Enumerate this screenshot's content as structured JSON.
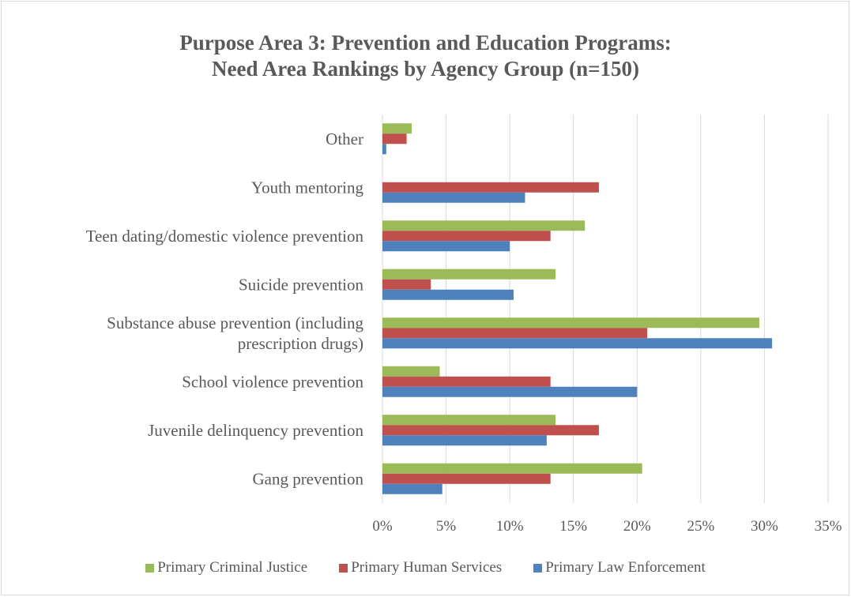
{
  "chart_data": {
    "type": "bar",
    "orientation": "horizontal",
    "title_lines": [
      "Purpose Area 3: Prevention and Education Programs:",
      "Need Area Rankings by Agency Group (n=150)"
    ],
    "categories": [
      [
        "Other"
      ],
      [
        "Youth mentoring"
      ],
      [
        "Teen dating/domestic violence prevention"
      ],
      [
        "Suicide prevention"
      ],
      [
        "Substance abuse prevention (including",
        "prescription drugs)"
      ],
      [
        "School violence prevention"
      ],
      [
        "Juvenile delinquency prevention"
      ],
      [
        "Gang prevention"
      ]
    ],
    "series": [
      {
        "name": "Primary Criminal Justice",
        "color": "#9bbb59",
        "values": [
          2.3,
          0,
          15.9,
          13.6,
          29.6,
          4.5,
          13.6,
          20.4
        ]
      },
      {
        "name": "Primary Human Services",
        "color": "#c0504d",
        "values": [
          1.9,
          17.0,
          13.2,
          3.8,
          20.8,
          13.2,
          17.0,
          13.2
        ]
      },
      {
        "name": "Primary Law Enforcement",
        "color": "#4f81bd",
        "values": [
          0.3,
          11.2,
          10.0,
          10.3,
          30.6,
          20.0,
          12.9,
          4.7
        ]
      }
    ],
    "xlim": [
      0,
      35
    ],
    "xticks": [
      0,
      5,
      10,
      15,
      20,
      25,
      30,
      35
    ],
    "xtick_labels": [
      "0%",
      "5%",
      "10%",
      "15%",
      "20%",
      "25%",
      "30%",
      "35%"
    ],
    "grid": true,
    "legend_position": "bottom"
  }
}
